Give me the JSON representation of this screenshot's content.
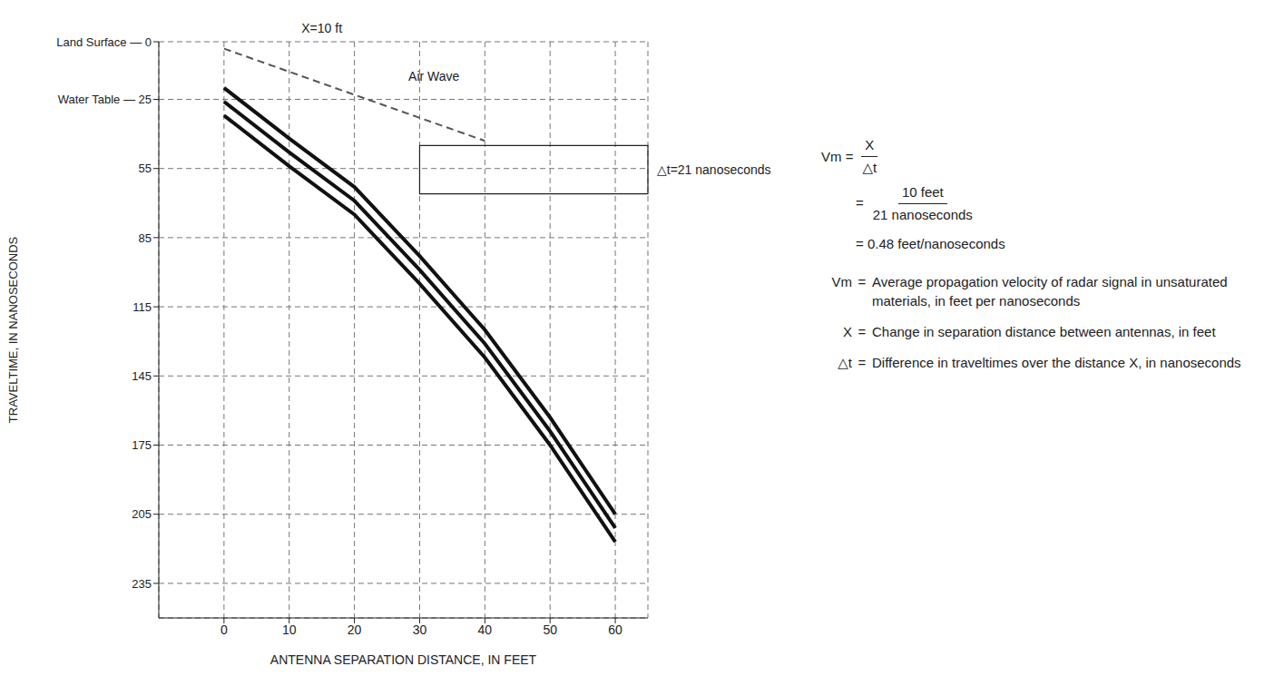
{
  "chart_data": {
    "type": "line",
    "x": [
      0,
      10,
      20,
      30,
      40,
      50,
      60
    ],
    "series": [
      {
        "name": "Air Wave",
        "color": "#555555",
        "line_style": "dashed",
        "marker": "none",
        "values": [
          3,
          13,
          23,
          33,
          43,
          null,
          null
        ]
      },
      {
        "color": "#111111",
        "line_style": "solid",
        "marker": "none",
        "values": [
          20,
          42,
          63,
          93,
          125,
          163,
          205
        ]
      },
      {
        "color": "#111111",
        "line_style": "solid",
        "marker": "none",
        "values": [
          26,
          48,
          69,
          99,
          131,
          169,
          211
        ]
      },
      {
        "color": "#111111",
        "line_style": "solid",
        "marker": "none",
        "values": [
          32,
          54,
          75,
          105,
          137,
          175,
          217
        ]
      }
    ],
    "xlim": [
      -10,
      65
    ],
    "xticks": [
      0,
      10,
      20,
      30,
      40,
      50,
      60
    ],
    "ylim": [
      0,
      250
    ],
    "yticks": [
      {
        "value": 0,
        "label": "Land Surface — 0"
      },
      {
        "value": 25,
        "label": "Water Table — 25"
      },
      55,
      85,
      115,
      145,
      175,
      205,
      235
    ],
    "x_label": "ANTENNA SEPARATION DISTANCE, IN FEET",
    "y_label": "TRAVELTIME, IN NANOSECONDS",
    "grid": true,
    "annotations": [
      {
        "text": "X=10 ft",
        "x": [
          10,
          20
        ]
      },
      {
        "text": "Air Wave",
        "x": 28,
        "y": 15
      },
      {
        "text": "△t=21 nanoseconds",
        "x": [
          30,
          65
        ],
        "y": [
          45,
          66
        ]
      }
    ],
    "equation": {
      "lhs": "Vm =",
      "numerator": "X",
      "denominator": "△t",
      "steps": [
        {
          "prefix": "=",
          "numerator": "10 feet",
          "denominator": "21 nanoseconds"
        }
      ],
      "result": "= 0.48 feet/nanoseconds"
    },
    "definitions": [
      {
        "symbol": "Vm",
        "separator": "=",
        "text": "Average propagation velocity of radar signal in unsaturated materials, in feet per nanoseconds"
      },
      {
        "symbol": "X",
        "separator": "=",
        "text": "Change in separation distance between antennas, in feet"
      },
      {
        "symbol": "△t",
        "separator": "=",
        "text": "Difference in traveltimes over the distance X, in nanoseconds"
      }
    ]
  }
}
